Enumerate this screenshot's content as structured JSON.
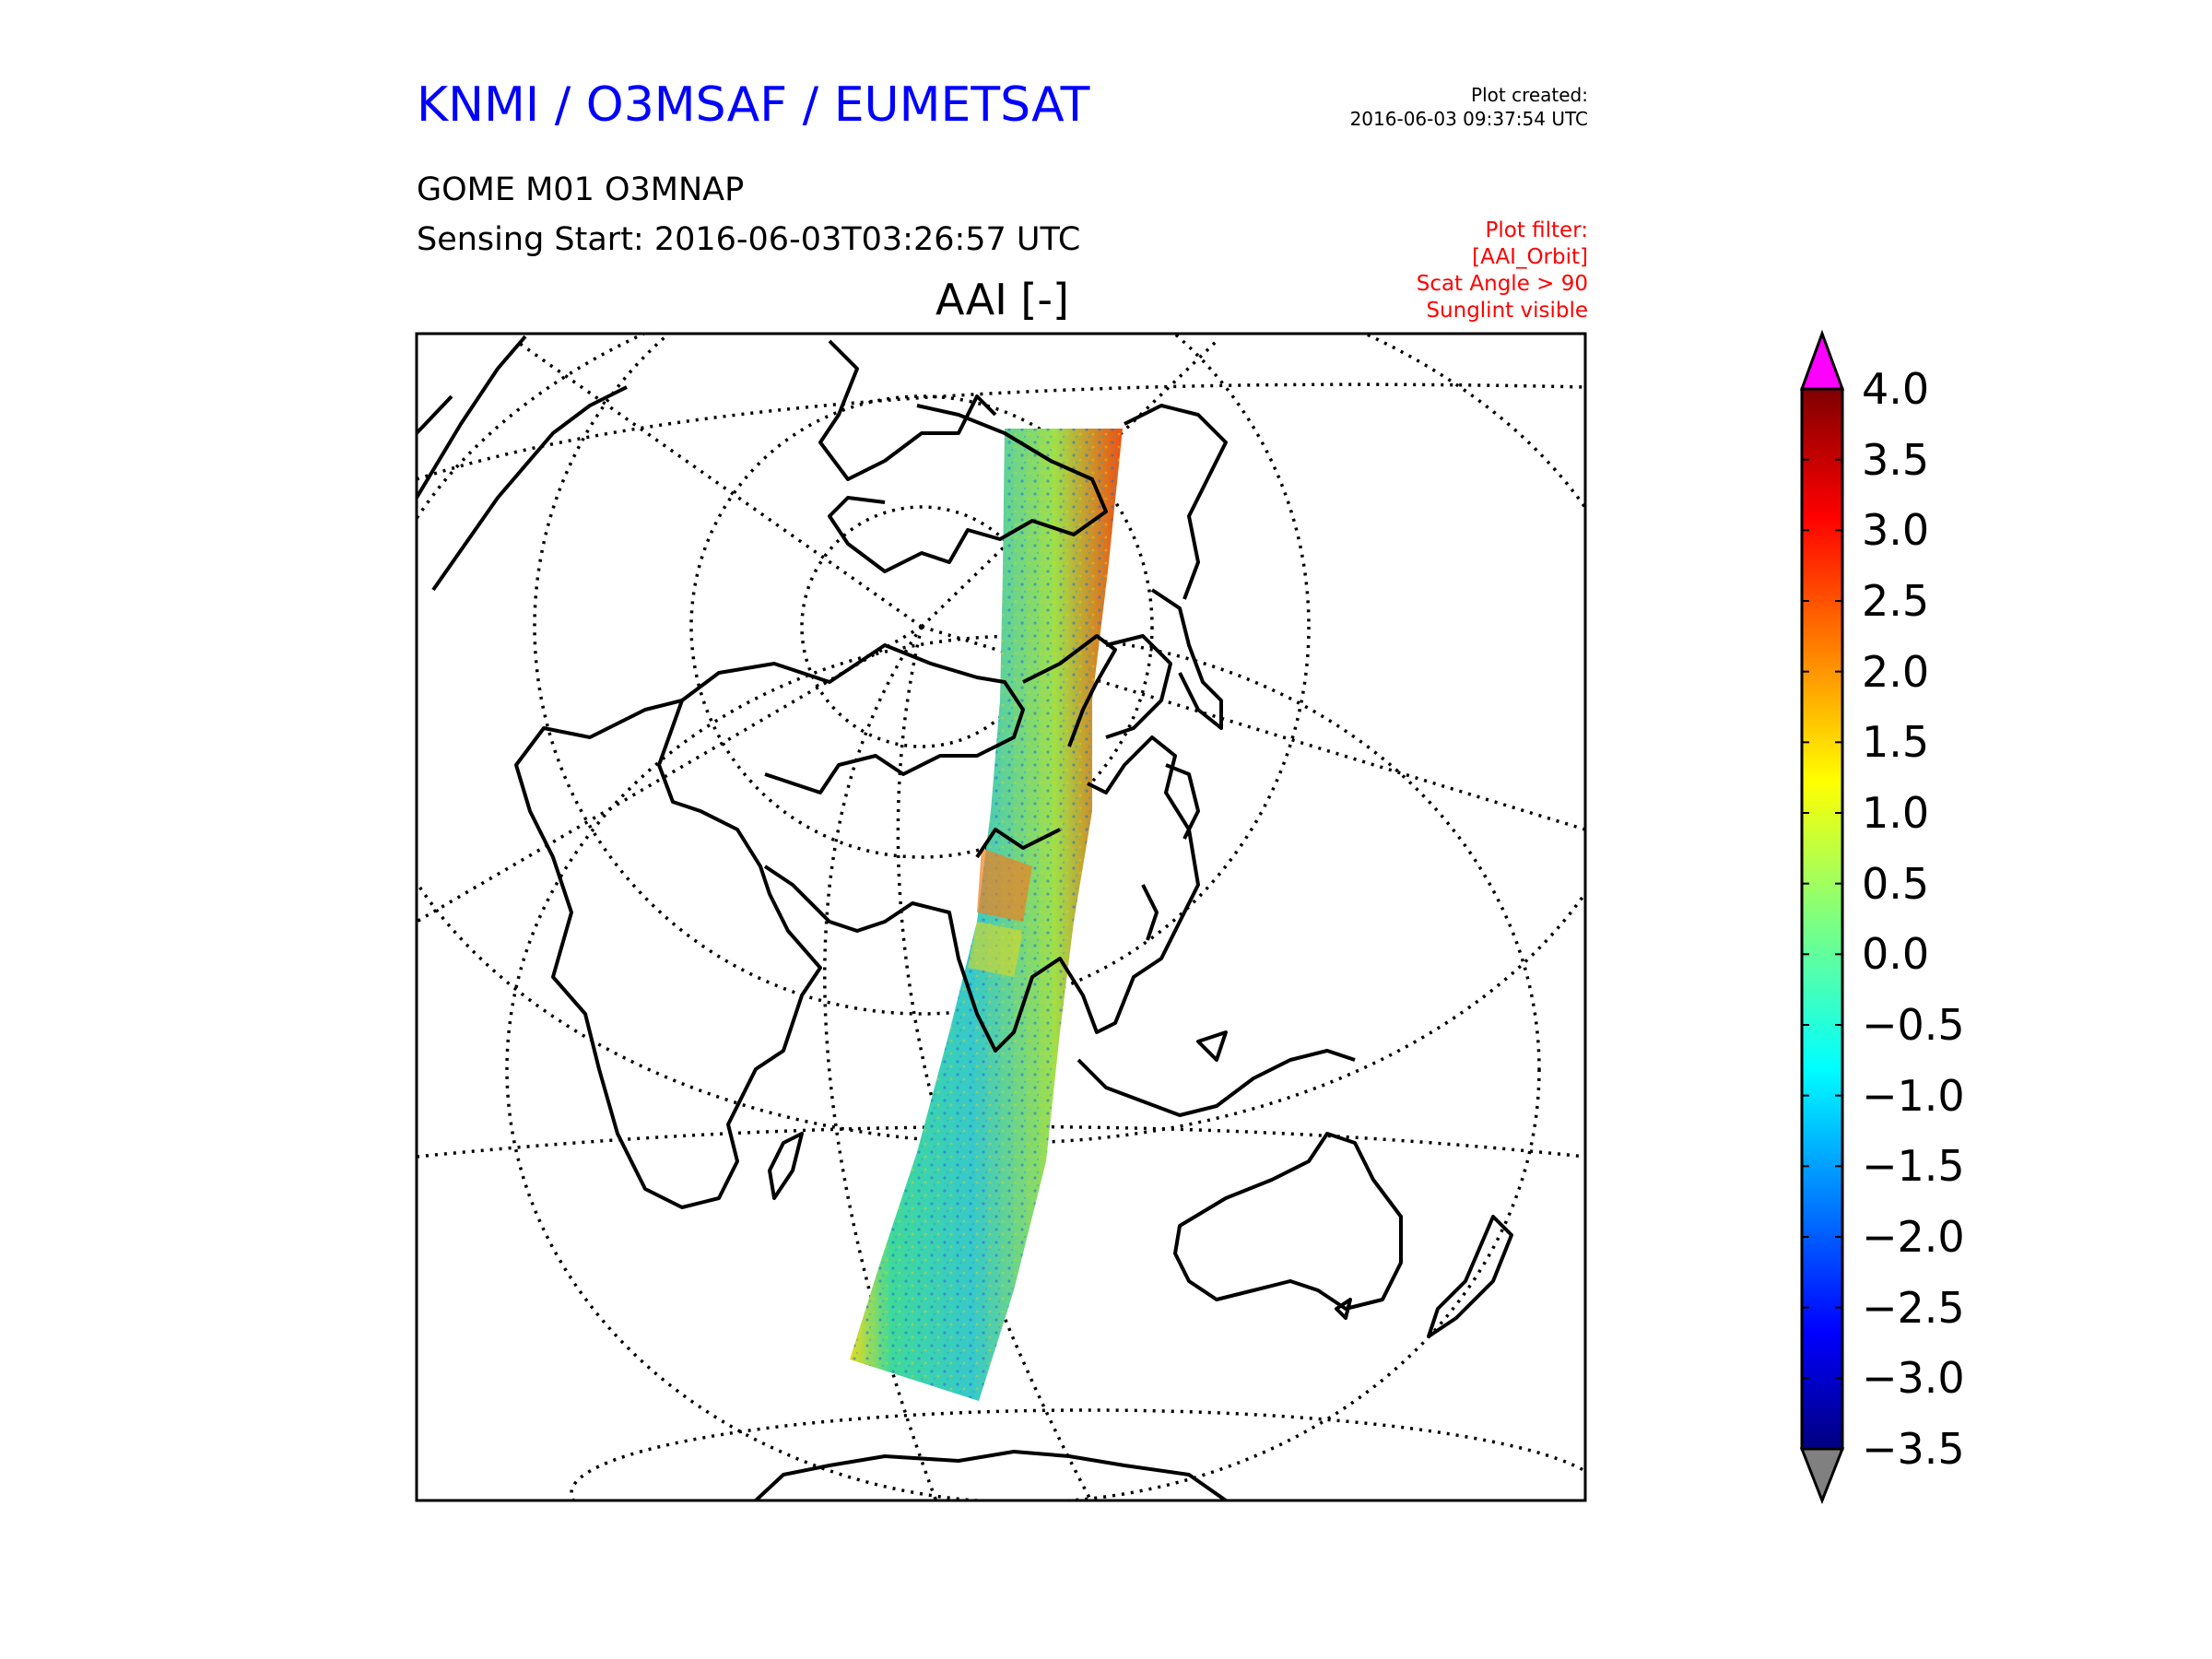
{
  "header": {
    "org": "KNMI / O3MSAF / EUMETSAT",
    "plot_created_label": "Plot created:",
    "plot_created_time": "2016-06-03 09:37:54 UTC",
    "product": "GOME M01 O3MNAP",
    "sensing_start": "Sensing Start: 2016-06-03T03:26:57 UTC",
    "map_title": "AAI [-]"
  },
  "plot_filter": {
    "label": "Plot filter:",
    "lines": [
      "[AAI_Orbit]",
      "Scat Angle > 90",
      "Sunglint visible"
    ],
    "color": "#ff0000"
  },
  "colorbar": {
    "min": -3.5,
    "max": 4.0,
    "ticks": [
      "4.0",
      "3.5",
      "3.0",
      "2.5",
      "2.0",
      "1.5",
      "1.0",
      "0.5",
      "0.0",
      "−0.5",
      "−1.0",
      "−1.5",
      "−2.0",
      "−2.5",
      "−3.0",
      "−3.5"
    ],
    "over_color": "#ff00ff",
    "under_color": "#808080",
    "colormap": "jet"
  },
  "map": {
    "projection": "orthographic",
    "coastlines": true,
    "graticule": "dotted",
    "swath_instrument": "GOME M01"
  }
}
